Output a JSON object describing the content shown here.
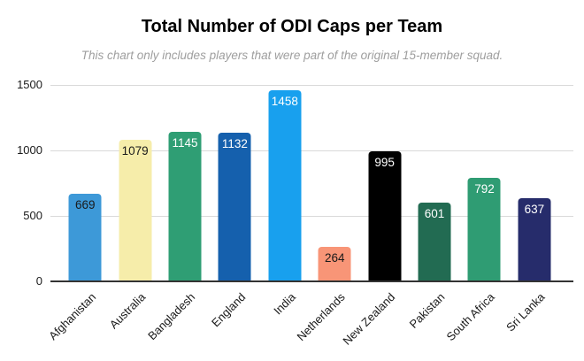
{
  "title": "Total Number of ODI Caps per Team",
  "subtitle": "This chart only includes players that were part of the original 15-member squad.",
  "chart_data": {
    "type": "bar",
    "title": "Total Number of ODI Caps per Team",
    "subtitle": "This chart only includes players that were part of the original 15-member squad.",
    "categories": [
      "Afghanistan",
      "Australia",
      "Bangladesh",
      "England",
      "India",
      "Netherlands",
      "New Zealand",
      "Pakistan",
      "South Africa",
      "Sri Lanka"
    ],
    "values": [
      669,
      1079,
      1145,
      1132,
      1458,
      264,
      995,
      601,
      792,
      637
    ],
    "bar_colors": [
      "#3d99d8",
      "#f6edaa",
      "#2f9e74",
      "#1560ad",
      "#18a0ee",
      "#f89577",
      "#000000",
      "#226b52",
      "#2f9c73",
      "#262c6b"
    ],
    "value_label_colors": [
      "#1a1a1a",
      "#1a1a1a",
      "#ffffff",
      "#ffffff",
      "#ffffff",
      "#1a1a1a",
      "#ffffff",
      "#ffffff",
      "#ffffff",
      "#ffffff"
    ],
    "xlabel": "",
    "ylabel": "",
    "yticks": [
      0,
      500,
      1000,
      1500
    ],
    "ylim": [
      0,
      1500
    ],
    "grid": true,
    "legend_position": "none"
  },
  "colors": {
    "background": "#ffffff",
    "gridline": "#d9d9d9",
    "axis_line": "#333333",
    "tick_label": "#1a1a1a",
    "subtitle_text": "#9e9e9e",
    "title_text": "#000000"
  }
}
